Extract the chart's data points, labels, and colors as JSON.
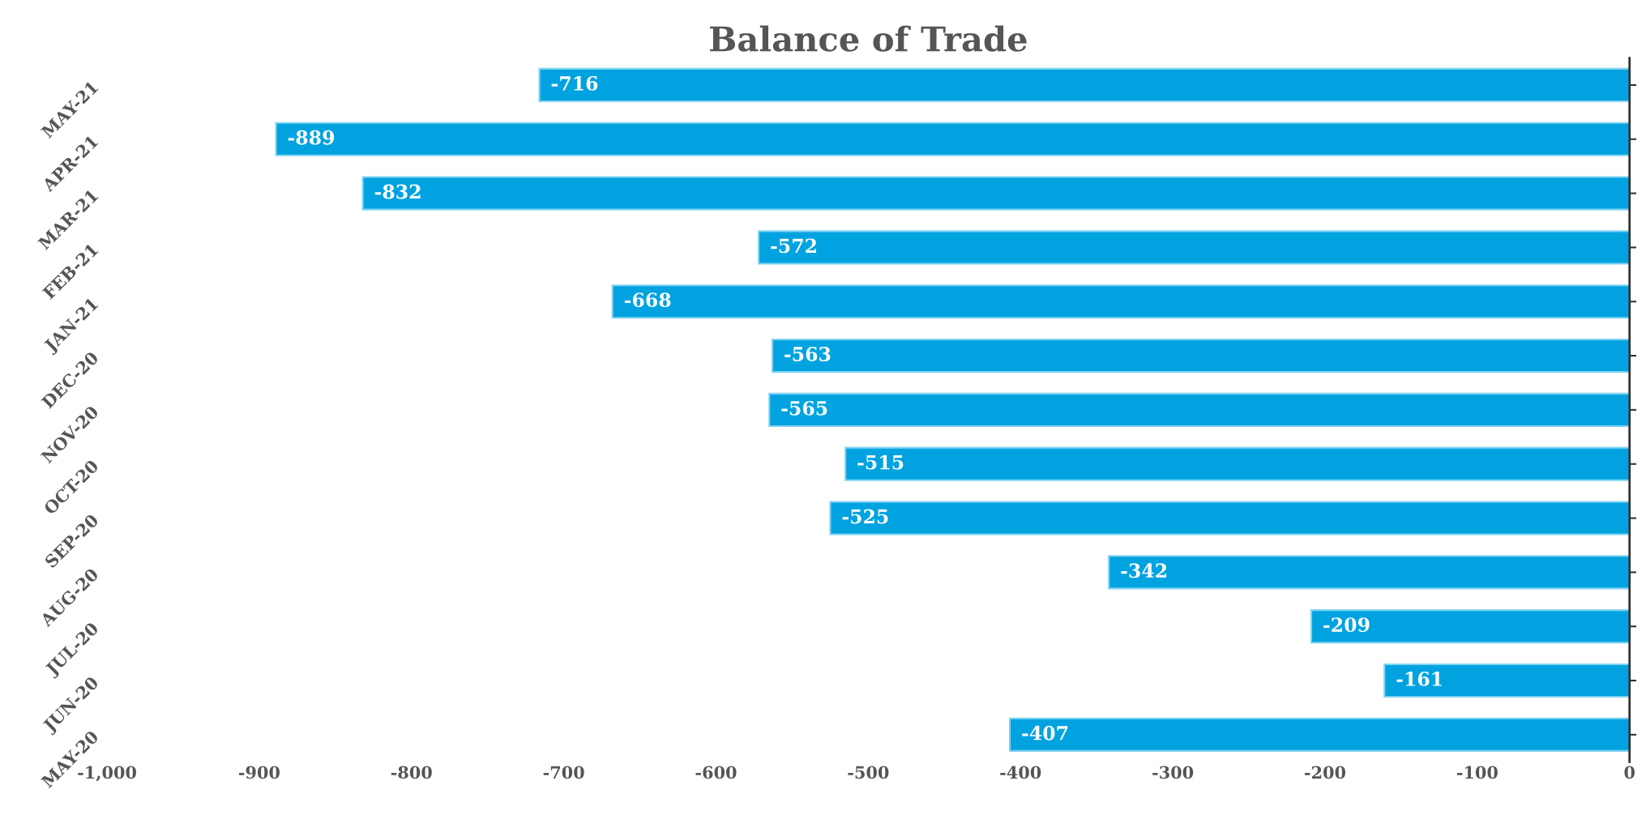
{
  "chart_data": {
    "type": "bar",
    "orientation": "horizontal",
    "title": "Balance of Trade",
    "categories": [
      "MAY-21",
      "APR-21",
      "MAR-21",
      "FEB-21",
      "JAN-21",
      "DEC-20",
      "NOV-20",
      "OCT-20",
      "SEP-20",
      "AUG-20",
      "JUL-20",
      "JUN-20",
      "MAY-20"
    ],
    "values": [
      -716,
      -889,
      -832,
      -572,
      -668,
      -563,
      -565,
      -515,
      -525,
      -342,
      -209,
      -161,
      -407
    ],
    "color": "#00a3e0",
    "xlim": [
      -1000,
      0
    ],
    "xticks": [
      {
        "value": -1000,
        "label": "-1,000"
      },
      -900,
      -800,
      -700,
      -600,
      -500,
      -400,
      -300,
      -200,
      -100,
      0
    ],
    "data_labels": true,
    "grid": false,
    "legend": false
  }
}
